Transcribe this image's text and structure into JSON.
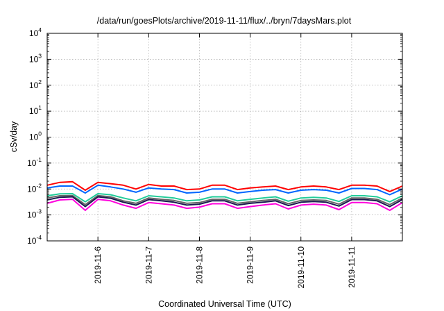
{
  "chart_data": {
    "type": "line",
    "title": "/data/run/goesPlots/archive/2019-11-11/flux/../bryn/7daysMars.plot",
    "xlabel": "Coordinated Universal Time (UTC)",
    "ylabel": "cSv/day",
    "yscale": "log",
    "ylim": [
      0.0001,
      10000
    ],
    "xlim": [
      "2019-11-05T00:00",
      "2019-11-11T23:59"
    ],
    "grid": true,
    "y_ticks": [
      {
        "base": "10",
        "exp": "-4",
        "value": 0.0001
      },
      {
        "base": "10",
        "exp": "-3",
        "value": 0.001
      },
      {
        "base": "10",
        "exp": "-2",
        "value": 0.01
      },
      {
        "base": "10",
        "exp": "-1",
        "value": 0.1
      },
      {
        "base": "10",
        "exp": "0",
        "value": 1
      },
      {
        "base": "10",
        "exp": "1",
        "value": 10
      },
      {
        "base": "10",
        "exp": "2",
        "value": 100
      },
      {
        "base": "10",
        "exp": "3",
        "value": 1000
      },
      {
        "base": "10",
        "exp": "4",
        "value": 10000
      }
    ],
    "x_ticks": [
      "2019-11-6",
      "2019-11-7",
      "2019-11-8",
      "2019-11-9",
      "2019-11-10",
      "2019-11-11"
    ],
    "x": [
      "2019-11-05T00:00",
      "2019-11-05T06:00",
      "2019-11-05T12:00",
      "2019-11-05T18:00",
      "2019-11-06T00:00",
      "2019-11-06T06:00",
      "2019-11-06T12:00",
      "2019-11-06T18:00",
      "2019-11-07T00:00",
      "2019-11-07T06:00",
      "2019-11-07T12:00",
      "2019-11-07T18:00",
      "2019-11-08T00:00",
      "2019-11-08T06:00",
      "2019-11-08T12:00",
      "2019-11-08T18:00",
      "2019-11-09T00:00",
      "2019-11-09T06:00",
      "2019-11-09T12:00",
      "2019-11-09T18:00",
      "2019-11-10T00:00",
      "2019-11-10T06:00",
      "2019-11-10T12:00",
      "2019-11-10T18:00",
      "2019-11-11T00:00",
      "2019-11-11T06:00",
      "2019-11-11T12:00",
      "2019-11-11T18:00",
      "2019-11-11T23:59"
    ],
    "series": [
      {
        "color": "#ff0000",
        "values": [
          0.014,
          0.018,
          0.019,
          0.009,
          0.018,
          0.016,
          0.014,
          0.01,
          0.015,
          0.013,
          0.013,
          0.0095,
          0.01,
          0.014,
          0.014,
          0.0095,
          0.011,
          0.012,
          0.013,
          0.0095,
          0.012,
          0.013,
          0.012,
          0.0095,
          0.014,
          0.014,
          0.013,
          0.008,
          0.013
        ]
      },
      {
        "color": "#0066ff",
        "values": [
          0.011,
          0.013,
          0.013,
          0.007,
          0.014,
          0.012,
          0.01,
          0.0075,
          0.011,
          0.01,
          0.0095,
          0.007,
          0.0075,
          0.01,
          0.01,
          0.007,
          0.008,
          0.009,
          0.0095,
          0.007,
          0.009,
          0.0095,
          0.009,
          0.007,
          0.0105,
          0.0105,
          0.0095,
          0.006,
          0.01
        ]
      },
      {
        "color": "#22cc99",
        "values": [
          0.0055,
          0.0065,
          0.0066,
          0.0032,
          0.0066,
          0.006,
          0.0045,
          0.0035,
          0.0055,
          0.005,
          0.0045,
          0.0035,
          0.0038,
          0.005,
          0.005,
          0.0035,
          0.004,
          0.0045,
          0.005,
          0.0034,
          0.0045,
          0.0048,
          0.0045,
          0.0033,
          0.0055,
          0.0055,
          0.005,
          0.0032,
          0.0055
        ]
      },
      {
        "color": "#666666",
        "values": [
          0.0045,
          0.0055,
          0.0056,
          0.0025,
          0.0056,
          0.005,
          0.0035,
          0.0028,
          0.0045,
          0.004,
          0.0036,
          0.0028,
          0.003,
          0.004,
          0.004,
          0.0028,
          0.0032,
          0.0036,
          0.004,
          0.0027,
          0.0036,
          0.0038,
          0.0036,
          0.0026,
          0.0045,
          0.0045,
          0.004,
          0.0025,
          0.0045
        ]
      },
      {
        "color": "#1a1a50",
        "values": [
          0.0038,
          0.0048,
          0.005,
          0.0021,
          0.005,
          0.0044,
          0.0031,
          0.0024,
          0.0039,
          0.0035,
          0.0031,
          0.0024,
          0.0026,
          0.0035,
          0.0035,
          0.0024,
          0.0028,
          0.0031,
          0.0035,
          0.0023,
          0.0031,
          0.0033,
          0.0031,
          0.0022,
          0.0039,
          0.0039,
          0.0035,
          0.0021,
          0.0039
        ]
      },
      {
        "color": "#ff00dd",
        "values": [
          0.0028,
          0.0038,
          0.004,
          0.0015,
          0.004,
          0.0035,
          0.0024,
          0.0018,
          0.003,
          0.0027,
          0.0024,
          0.0018,
          0.002,
          0.0027,
          0.0027,
          0.0018,
          0.0021,
          0.0024,
          0.0027,
          0.0017,
          0.0024,
          0.0026,
          0.0024,
          0.0016,
          0.003,
          0.003,
          0.0027,
          0.0015,
          0.003
        ]
      }
    ]
  }
}
